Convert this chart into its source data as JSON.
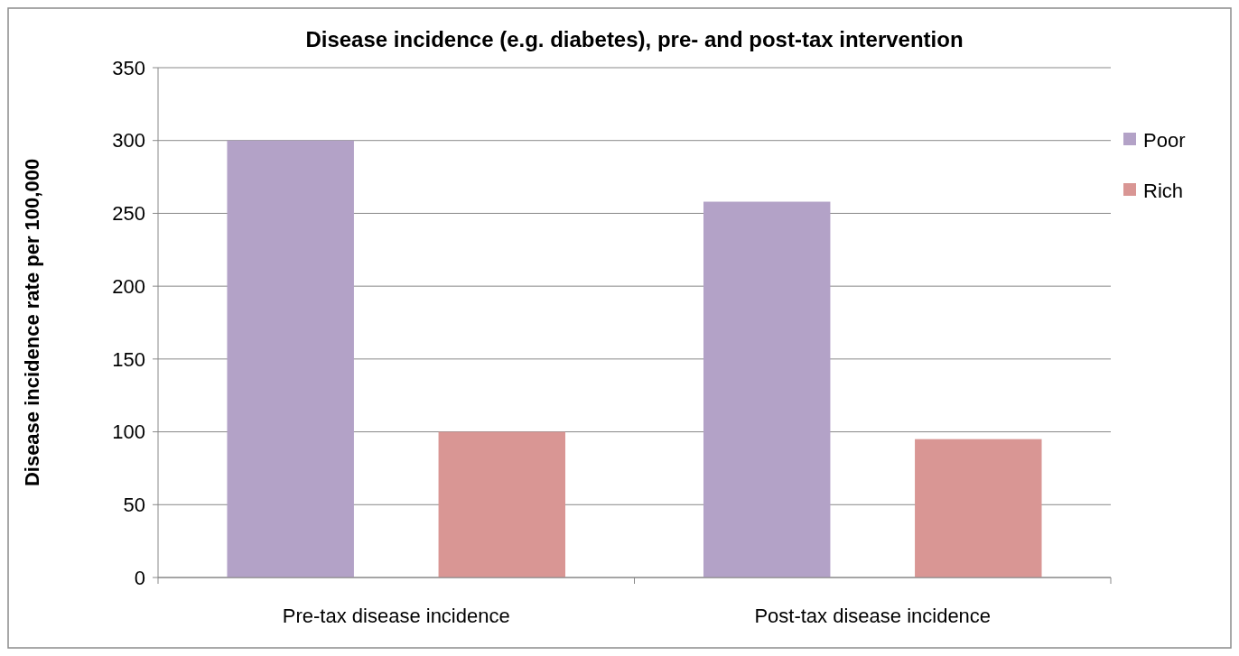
{
  "chart_data": {
    "type": "bar",
    "title": "Disease incidence (e.g. diabetes), pre- and post-tax intervention",
    "ylabel": "Disease incidence rate per 100,000",
    "categories": [
      "Pre-tax disease incidence",
      "Post-tax disease incidence"
    ],
    "series": [
      {
        "name": "Poor",
        "color": "#b3a2c7",
        "values": [
          300,
          258
        ]
      },
      {
        "name": "Rich",
        "color": "#d99694",
        "values": [
          100,
          95
        ]
      }
    ],
    "ylim": [
      0,
      350
    ],
    "yticks": [
      0,
      50,
      100,
      150,
      200,
      250,
      300,
      350
    ],
    "grid": "y",
    "legend": "right"
  }
}
